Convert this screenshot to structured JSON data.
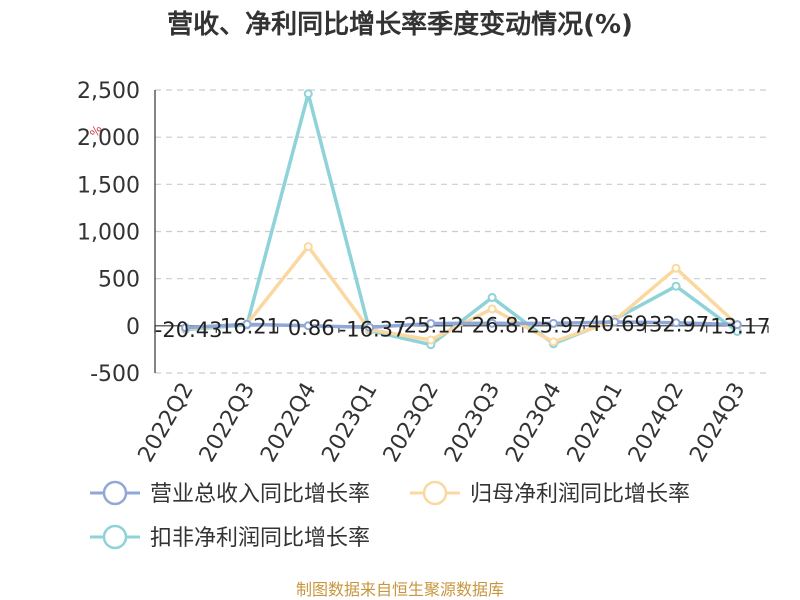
{
  "chart_data": {
    "type": "line",
    "title": "营收、净利同比增长率季度变动情况(%)",
    "unit_mark": "%",
    "categories": [
      "2022Q2",
      "2022Q3",
      "2022Q4",
      "2023Q1",
      "2023Q2",
      "2023Q3",
      "2023Q4",
      "2024Q1",
      "2024Q2",
      "2024Q3"
    ],
    "ylim": [
      -500,
      2500
    ],
    "yticks": [
      -500,
      0,
      500,
      1000,
      1500,
      2000,
      2500
    ],
    "ytick_labels": [
      "-500",
      "0",
      "500",
      "1,000",
      "1,500",
      "2,000",
      "2,500"
    ],
    "grid": true,
    "legend_position": "bottom",
    "series": [
      {
        "name": "营业总收入同比增长率",
        "color": "#8fa8d8",
        "values": [
          -20.43,
          16.21,
          0.86,
          -16.37,
          25.12,
          26.8,
          25.97,
          40.69,
          32.97,
          13.17
        ],
        "labels": [
          "-20.43",
          "16.21",
          "0.86",
          "-16.37",
          "25.12",
          "26.8",
          "25.97",
          "40.69",
          "32.97",
          "13.17"
        ]
      },
      {
        "name": "归母净利润同比增长率",
        "color": "#fbd8a0",
        "values": [
          -30,
          20,
          840,
          -40,
          -150,
          180,
          -170,
          60,
          610,
          10
        ],
        "labels": []
      },
      {
        "name": "扣非净利润同比增长率",
        "color": "#8dd3d8",
        "values": [
          -40,
          10,
          2460,
          -50,
          -200,
          300,
          -190,
          70,
          420,
          -60
        ],
        "labels": []
      }
    ]
  },
  "source": "制图数据来自恒生聚源数据库"
}
